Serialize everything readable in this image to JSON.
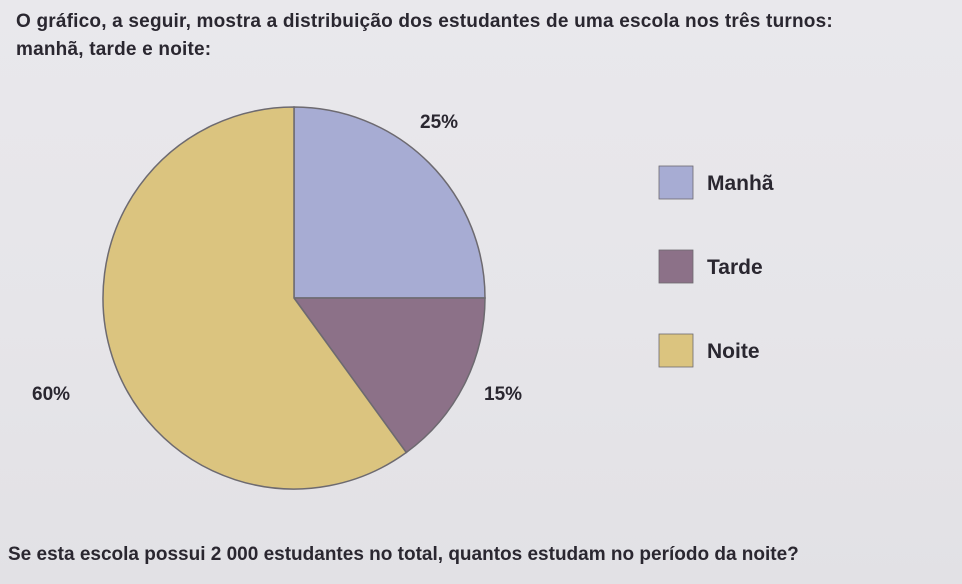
{
  "question": {
    "line1": "O gráfico, a seguir, mostra a distribuição dos estudantes de uma escola nos três turnos:",
    "line2": "manhã, tarde e noite:",
    "bottom": "Se esta escola possui 2 000 estudantes no total, quantos estudam no período da noite?"
  },
  "chart_data": {
    "type": "pie",
    "title": "",
    "slices": [
      {
        "name": "Manhã",
        "value": 25,
        "label": "25%",
        "color": "#a7acd3"
      },
      {
        "name": "Tarde",
        "value": 15,
        "label": "15%",
        "color": "#8c7188"
      },
      {
        "name": "Noite",
        "value": 60,
        "label": "60%",
        "color": "#dbc47f"
      }
    ],
    "start_angle_deg": -90,
    "direction": "clockwise",
    "legend_position": "right"
  },
  "colors": {
    "background": "#e7e6ea",
    "text": "#2a2730",
    "slice_border": "#6d6a70"
  }
}
